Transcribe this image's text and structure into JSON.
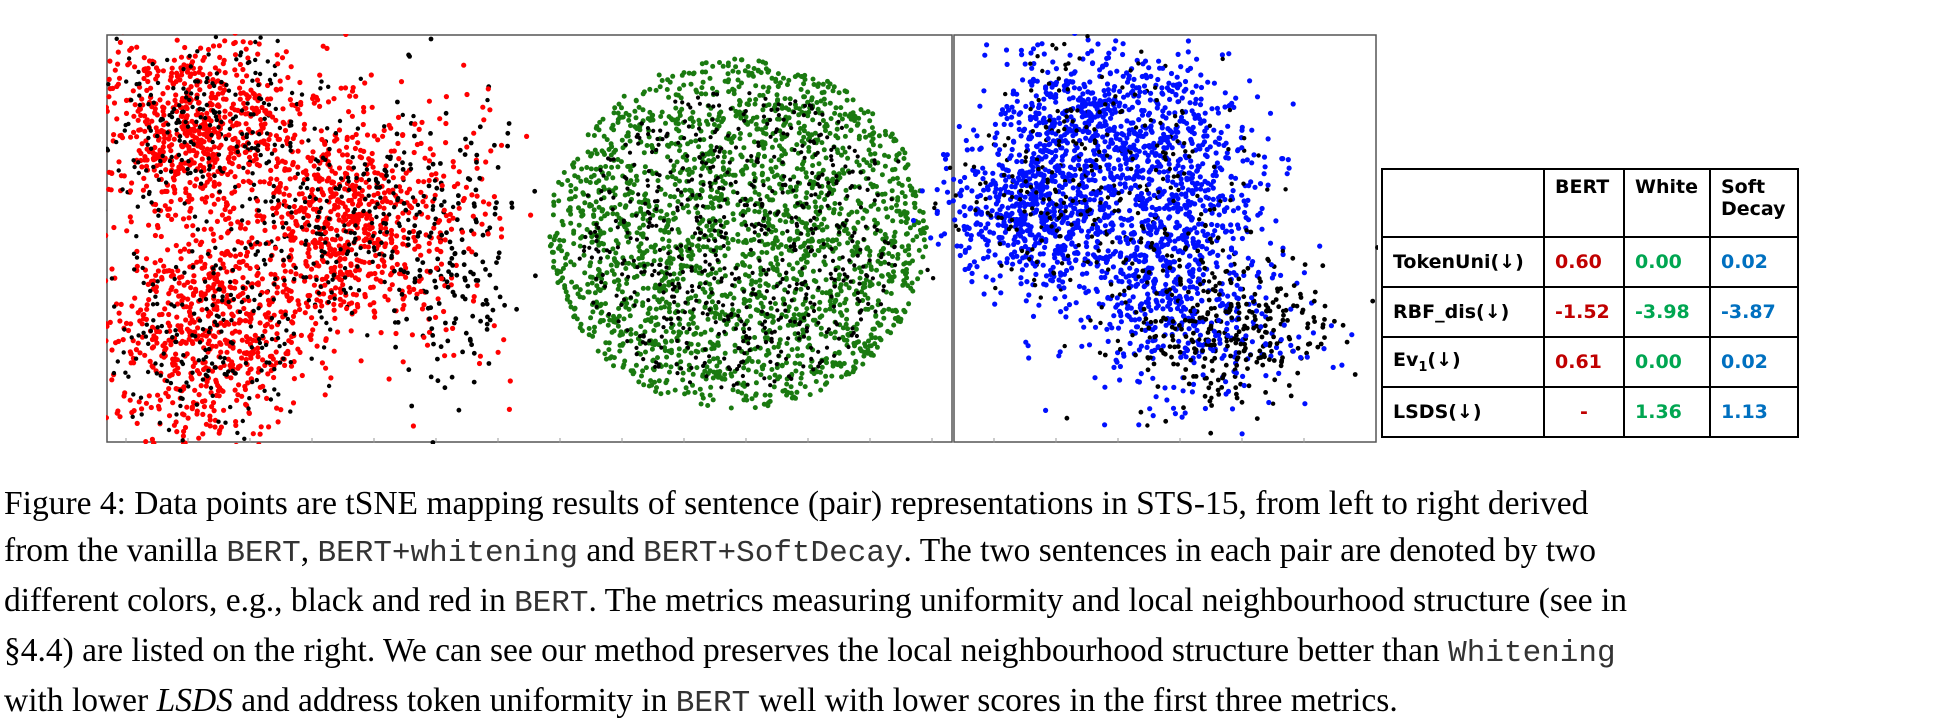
{
  "figure": {
    "panels": [
      {
        "name": "bert",
        "colors": [
          "#ff0000",
          "#000000"
        ]
      },
      {
        "name": "whitening",
        "colors": [
          "#1a7a10",
          "#000000"
        ]
      },
      {
        "name": "softdecay",
        "colors": [
          "#0010ff",
          "#000000"
        ]
      }
    ]
  },
  "table": {
    "headers": [
      "",
      "BERT",
      "White",
      "Soft Decay"
    ],
    "header_colors": [
      "#000000",
      "#000000",
      "#000000",
      "#000000"
    ],
    "value_colors": [
      "#c00000",
      "#00a651",
      "#0070c0"
    ],
    "rows": [
      {
        "metric": "TokenUni(↓)",
        "values": [
          "0.60",
          "0.00",
          "0.02"
        ]
      },
      {
        "metric": "RBF_dis(↓)",
        "values": [
          "-1.52",
          "-3.98",
          "-3.87"
        ]
      },
      {
        "metric": "Ev1(↓)",
        "values": [
          "0.61",
          "0.00",
          "0.02"
        ]
      },
      {
        "metric": "LSDS(↓)",
        "values": [
          "-",
          "1.36",
          "1.13"
        ]
      }
    ]
  },
  "caption": {
    "s1": "Figure 4: Data points are tSNE mapping results of sentence (pair) representations in STS-15, from left to right derived",
    "s2a": "from the vanilla ",
    "s2b": "BERT",
    "s2c": ", ",
    "s2d": "BERT+whitening",
    "s2e": " and ",
    "s2f": "BERT+SoftDecay",
    "s2g": ". The two sentences in each pair are denoted by two",
    "s3a": "different colors, e.g., black and red in ",
    "s3b": "BERT",
    "s3c": ". The metrics measuring uniformity and local neighbourhood structure (see in",
    "s4a": "§4.4) are listed on the right. We can see our method preserves the local neighbourhood structure better than ",
    "s4b": "Whitening",
    "s5a": "with lower ",
    "s5b": "LSDS",
    "s5c": " and address token uniformity in ",
    "s5d": "BERT",
    "s5e": " well with lower scores in the first three metrics."
  }
}
